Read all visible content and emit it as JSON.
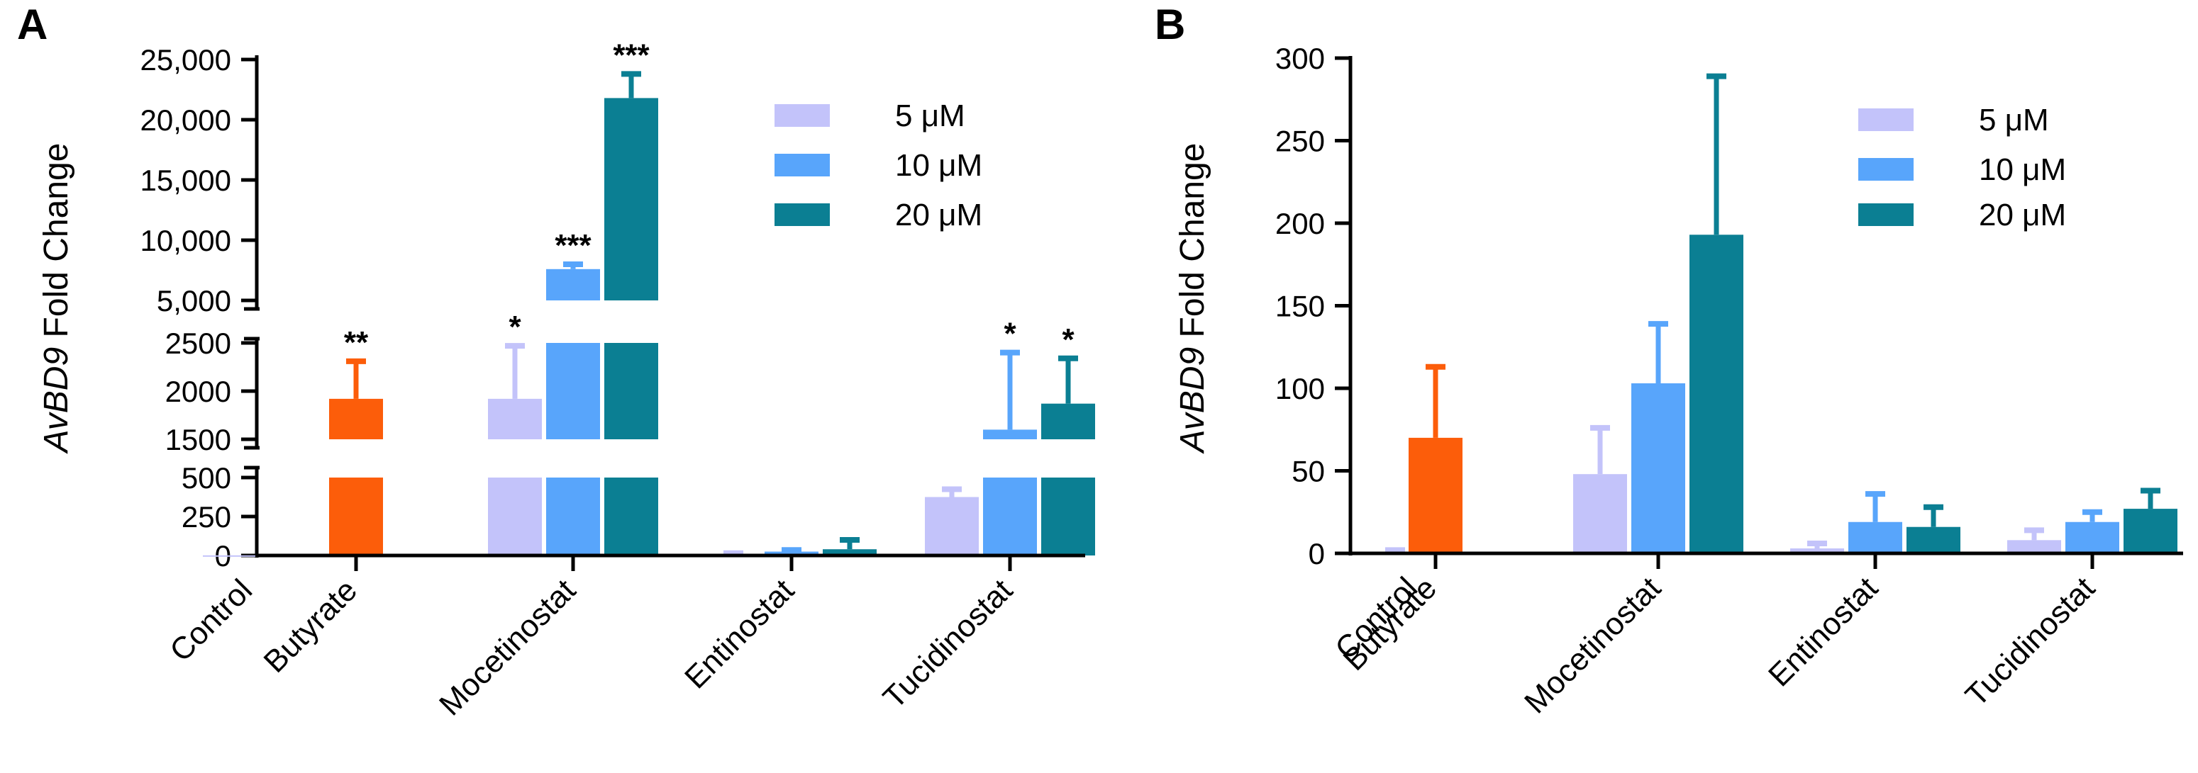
{
  "chart_data": [
    {
      "panel": "A",
      "type": "bar",
      "ylabel_italic": "AvBD9",
      "ylabel_rest": " Fold Change",
      "axis_break": true,
      "y_segments": [
        {
          "range": [
            0,
            500
          ],
          "ticks": [
            0,
            250,
            500
          ],
          "tick_labels": [
            "0",
            "250",
            "500"
          ]
        },
        {
          "range": [
            1500,
            2500
          ],
          "ticks": [
            1500,
            2000,
            2500
          ],
          "tick_labels": [
            "1500",
            "2000",
            "2500"
          ]
        },
        {
          "range": [
            5000,
            25000
          ],
          "ticks": [
            5000,
            10000,
            15000,
            20000,
            25000
          ],
          "tick_labels": [
            "5,000",
            "10,000",
            "15,000",
            "20,000",
            "25,000"
          ]
        }
      ],
      "groups": [
        "Control",
        "Butyrate",
        "Mocetinostat",
        "Entinostat",
        "Tucidinostat"
      ],
      "legend": [
        {
          "label": "5 μM",
          "color": "#c3c3fa"
        },
        {
          "label": "10 μM",
          "color": "#58a5fb"
        },
        {
          "label": "20 μM",
          "color": "#0b7f93"
        }
      ],
      "bars": [
        {
          "group": "Control",
          "series": null,
          "value": 1,
          "error": 0,
          "sig": "",
          "color": "#c3c3fa"
        },
        {
          "group": "Butyrate",
          "series": null,
          "value": 1920,
          "error": 390,
          "sig": "**",
          "color": "#fc5d0a"
        },
        {
          "group": "Mocetinostat",
          "series": "5 μM",
          "value": 1920,
          "error": 550,
          "sig": "*",
          "color": "#c3c3fa"
        },
        {
          "group": "Mocetinostat",
          "series": "10 μM",
          "value": 7600,
          "error": 400,
          "sig": "***",
          "color": "#58a5fb"
        },
        {
          "group": "Mocetinostat",
          "series": "20 μM",
          "value": 21800,
          "error": 2000,
          "sig": "***",
          "color": "#0b7f93"
        },
        {
          "group": "Entinostat",
          "series": "5 μM",
          "value": 5,
          "error": 10,
          "sig": "",
          "color": "#c3c3fa"
        },
        {
          "group": "Entinostat",
          "series": "10 μM",
          "value": 25,
          "error": 10,
          "sig": "",
          "color": "#58a5fb"
        },
        {
          "group": "Entinostat",
          "series": "20 μM",
          "value": 40,
          "error": 60,
          "sig": "",
          "color": "#0b7f93"
        },
        {
          "group": "Tucidinostat",
          "series": "5 μM",
          "value": 375,
          "error": 50,
          "sig": "",
          "color": "#c3c3fa"
        },
        {
          "group": "Tucidinostat",
          "series": "10 μM",
          "value": 1600,
          "error": 800,
          "sig": "*",
          "color": "#58a5fb"
        },
        {
          "group": "Tucidinostat",
          "series": "20 μM",
          "value": 1870,
          "error": 470,
          "sig": "*",
          "color": "#0b7f93"
        }
      ]
    },
    {
      "panel": "B",
      "type": "bar",
      "ylabel_italic": "AvBD9",
      "ylabel_rest": " Fold Change",
      "ylim": [
        0,
        300
      ],
      "yticks": [
        0,
        50,
        100,
        150,
        200,
        250,
        300
      ],
      "groups": [
        "Control",
        "Butyrate",
        "Mocetinostat",
        "Entinostat",
        "Tucidinostat"
      ],
      "legend": [
        {
          "label": "5 μM",
          "color": "#c3c3fa"
        },
        {
          "label": "10 μM",
          "color": "#58a5fb"
        },
        {
          "label": "20 μM",
          "color": "#0b7f93"
        }
      ],
      "bars": [
        {
          "group": "Control",
          "series": null,
          "value": 1,
          "error": 1,
          "color": "#c3c3fa"
        },
        {
          "group": "Butyrate",
          "series": null,
          "value": 70,
          "error": 43,
          "color": "#fc5d0a"
        },
        {
          "group": "Mocetinostat",
          "series": "5 μM",
          "value": 48,
          "error": 28,
          "color": "#c3c3fa"
        },
        {
          "group": "Mocetinostat",
          "series": "10 μM",
          "value": 103,
          "error": 36,
          "color": "#58a5fb"
        },
        {
          "group": "Mocetinostat",
          "series": "20 μM",
          "value": 193,
          "error": 96,
          "color": "#0b7f93"
        },
        {
          "group": "Entinostat",
          "series": "5 μM",
          "value": 3,
          "error": 3,
          "color": "#c3c3fa"
        },
        {
          "group": "Entinostat",
          "series": "10 μM",
          "value": 19,
          "error": 17,
          "color": "#58a5fb"
        },
        {
          "group": "Entinostat",
          "series": "20 μM",
          "value": 16,
          "error": 12,
          "color": "#0b7f93"
        },
        {
          "group": "Tucidinostat",
          "series": "5 μM",
          "value": 8,
          "error": 6,
          "color": "#c3c3fa"
        },
        {
          "group": "Tucidinostat",
          "series": "10 μM",
          "value": 19,
          "error": 6,
          "color": "#58a5fb"
        },
        {
          "group": "Tucidinostat",
          "series": "20 μM",
          "value": 27,
          "error": 11,
          "color": "#0b7f93"
        }
      ]
    }
  ]
}
